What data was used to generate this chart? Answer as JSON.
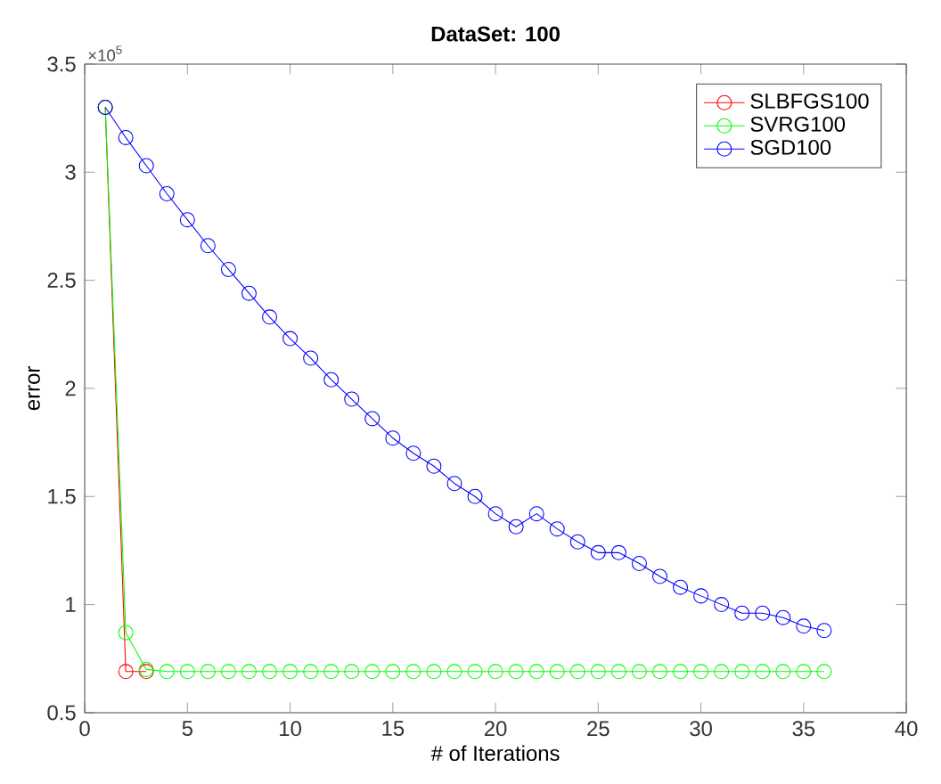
{
  "chart_data": {
    "type": "line",
    "title": "DataSet: 100",
    "xlabel": "# of Iterations",
    "ylabel": "error",
    "annotations": [
      "×10$^{5}$"
    ],
    "xlim": [
      0,
      40
    ],
    "xticks": [
      0,
      5,
      10,
      15,
      20,
      25,
      30,
      35,
      40
    ],
    "ylim": [
      0.5,
      3.5
    ],
    "yticks": [
      0.5,
      1,
      1.5,
      2,
      2.5,
      3,
      3.5
    ],
    "legend": "top right",
    "marker": "circle",
    "line_style": "solid",
    "grid": false,
    "series": [
      {
        "name": "SLBFGS100",
        "color": "#ff0000",
        "x": [
          1,
          2,
          3
        ],
        "values": [
          3.3,
          0.69,
          0.69
        ]
      },
      {
        "name": "SVRG100",
        "color": "#00ff00",
        "x": [
          1,
          2,
          3,
          4,
          5,
          6,
          7,
          8,
          9,
          10,
          11,
          12,
          13,
          14,
          15,
          16,
          17,
          18,
          19,
          20,
          21,
          22,
          23,
          24,
          25,
          26,
          27,
          28,
          29,
          30,
          31,
          32,
          33,
          34,
          35,
          36
        ],
        "values": [
          3.3,
          0.87,
          0.7,
          0.69,
          0.69,
          0.69,
          0.69,
          0.69,
          0.69,
          0.69,
          0.69,
          0.69,
          0.69,
          0.69,
          0.69,
          0.69,
          0.69,
          0.69,
          0.69,
          0.69,
          0.69,
          0.69,
          0.69,
          0.69,
          0.69,
          0.69,
          0.69,
          0.69,
          0.69,
          0.69,
          0.69,
          0.69,
          0.69,
          0.69,
          0.69,
          0.69
        ]
      },
      {
        "name": "SGD100",
        "color": "#0000ff",
        "x": [
          1,
          2,
          3,
          4,
          5,
          6,
          7,
          8,
          9,
          10,
          11,
          12,
          13,
          14,
          15,
          16,
          17,
          18,
          19,
          20,
          21,
          22,
          23,
          24,
          25,
          26,
          27,
          28,
          29,
          30,
          31,
          32,
          33,
          34,
          35,
          36
        ],
        "values": [
          3.3,
          3.16,
          3.03,
          2.9,
          2.78,
          2.66,
          2.55,
          2.44,
          2.33,
          2.23,
          2.14,
          2.04,
          1.95,
          1.86,
          1.77,
          1.7,
          1.64,
          1.56,
          1.5,
          1.42,
          1.36,
          1.42,
          1.35,
          1.29,
          1.24,
          1.24,
          1.19,
          1.13,
          1.08,
          1.04,
          1.0,
          0.96,
          0.96,
          0.94,
          0.9,
          0.88
        ]
      }
    ]
  }
}
